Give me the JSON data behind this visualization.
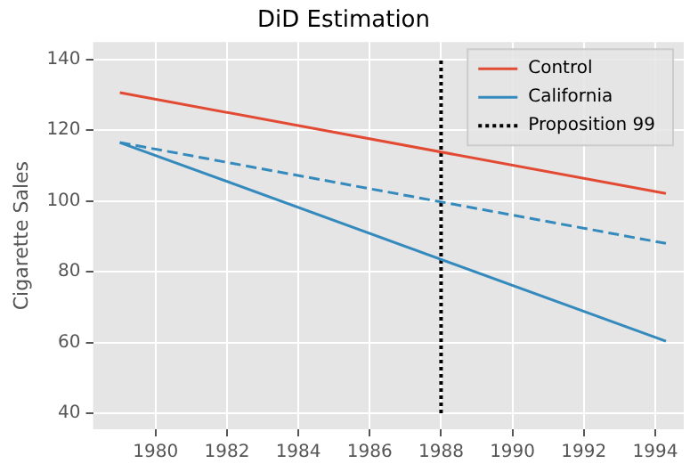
{
  "chart_data": {
    "type": "line",
    "title": "DiD Estimation",
    "ylabel": "Cigarette Sales",
    "xlim": [
      1978.25,
      1994.8
    ],
    "xticks": [
      1980,
      1982,
      1984,
      1986,
      1988,
      1990,
      1992,
      1994
    ],
    "ylim": [
      35.5,
      144.9
    ],
    "yticks": [
      40,
      60,
      80,
      100,
      120,
      140
    ],
    "grid": true,
    "legend": "top right",
    "marker": "none",
    "series": [
      {
        "name": "Control",
        "color": "#e24a33",
        "x": [
          1979,
          1994.3
        ],
        "values": [
          130.6,
          102.1
        ]
      },
      {
        "name": "California",
        "color": "#348abd",
        "x": [
          1979,
          1994.3
        ],
        "values": [
          116.5,
          60.4
        ]
      },
      {
        "color": "#348abd",
        "x": [
          1979,
          1994.3
        ],
        "values": [
          116.5,
          88
        ],
        "line_style": "dashed"
      },
      {
        "name": "Proposition 99",
        "color": "#000000",
        "x": [
          1988,
          1988
        ],
        "values": [
          40,
          140
        ],
        "line_style": "dotted"
      }
    ]
  }
}
